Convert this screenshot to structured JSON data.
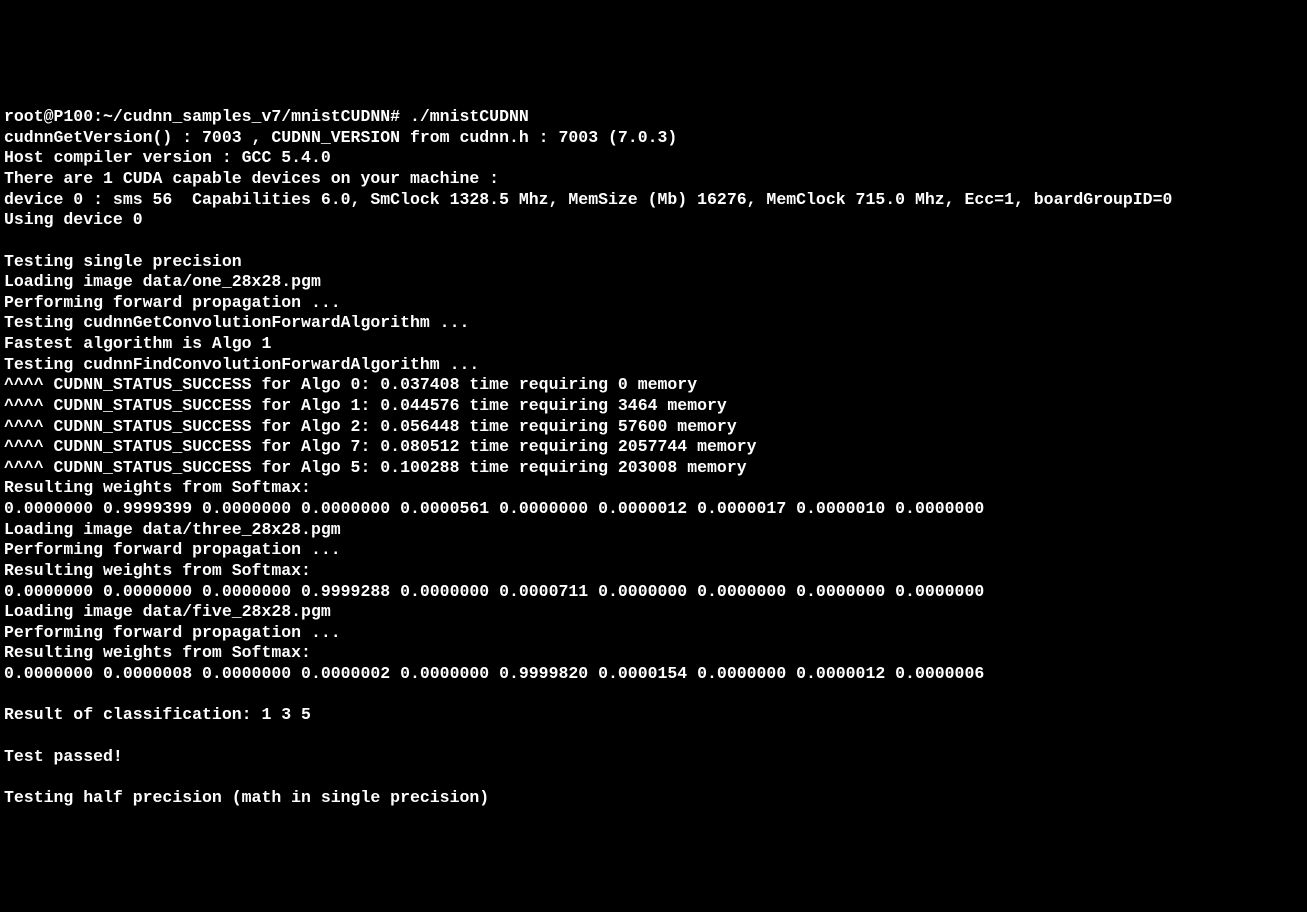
{
  "terminal": {
    "background_color": "#000000",
    "text_color": "#ffffff",
    "font_family": "monospace",
    "font_size": 16.5,
    "lines": [
      "root@P100:~/cudnn_samples_v7/mnistCUDNN# ./mnistCUDNN",
      "cudnnGetVersion() : 7003 , CUDNN_VERSION from cudnn.h : 7003 (7.0.3)",
      "Host compiler version : GCC 5.4.0",
      "There are 1 CUDA capable devices on your machine :",
      "device 0 : sms 56  Capabilities 6.0, SmClock 1328.5 Mhz, MemSize (Mb) 16276, MemClock 715.0 Mhz, Ecc=1, boardGroupID=0",
      "Using device 0",
      "",
      "Testing single precision",
      "Loading image data/one_28x28.pgm",
      "Performing forward propagation ...",
      "Testing cudnnGetConvolutionForwardAlgorithm ...",
      "Fastest algorithm is Algo 1",
      "Testing cudnnFindConvolutionForwardAlgorithm ...",
      "^^^^ CUDNN_STATUS_SUCCESS for Algo 0: 0.037408 time requiring 0 memory",
      "^^^^ CUDNN_STATUS_SUCCESS for Algo 1: 0.044576 time requiring 3464 memory",
      "^^^^ CUDNN_STATUS_SUCCESS for Algo 2: 0.056448 time requiring 57600 memory",
      "^^^^ CUDNN_STATUS_SUCCESS for Algo 7: 0.080512 time requiring 2057744 memory",
      "^^^^ CUDNN_STATUS_SUCCESS for Algo 5: 0.100288 time requiring 203008 memory",
      "Resulting weights from Softmax:",
      "0.0000000 0.9999399 0.0000000 0.0000000 0.0000561 0.0000000 0.0000012 0.0000017 0.0000010 0.0000000",
      "Loading image data/three_28x28.pgm",
      "Performing forward propagation ...",
      "Resulting weights from Softmax:",
      "0.0000000 0.0000000 0.0000000 0.9999288 0.0000000 0.0000711 0.0000000 0.0000000 0.0000000 0.0000000",
      "Loading image data/five_28x28.pgm",
      "Performing forward propagation ...",
      "Resulting weights from Softmax:",
      "0.0000000 0.0000008 0.0000000 0.0000002 0.0000000 0.9999820 0.0000154 0.0000000 0.0000012 0.0000006",
      "",
      "Result of classification: 1 3 5",
      "",
      "Test passed!",
      "",
      "Testing half precision (math in single precision)"
    ]
  }
}
